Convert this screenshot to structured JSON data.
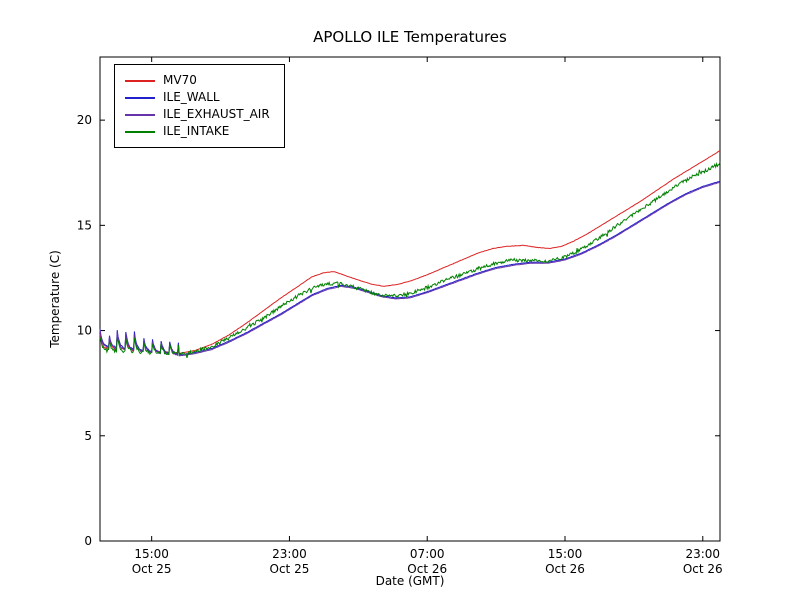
{
  "chart_data": {
    "type": "line",
    "title": "APOLLO ILE Temperatures",
    "xlabel": "Date (GMT)",
    "ylabel": "Temperature (C)",
    "x_unit_note": "hours since Oct 25 12:00 GMT",
    "xlim": [
      0,
      36
    ],
    "ylim": [
      0,
      23
    ],
    "yticks": [
      0,
      5,
      10,
      15,
      20
    ],
    "xticks": [
      {
        "t": 3,
        "time": "15:00",
        "date": "Oct 25"
      },
      {
        "t": 11,
        "time": "23:00",
        "date": "Oct 25"
      },
      {
        "t": 19,
        "time": "07:00",
        "date": "Oct 26"
      },
      {
        "t": 27,
        "time": "15:00",
        "date": "Oct 26"
      },
      {
        "t": 35,
        "time": "23:00",
        "date": "Oct 26"
      }
    ],
    "grid": false,
    "legend_position": "upper left",
    "frame_color": "#000000",
    "background": "#ffffff",
    "spike_region": {
      "t_end": 4.55,
      "period": 0.5,
      "note": "sawtooth oscillations on all series at start"
    },
    "series": [
      {
        "name": "MV70",
        "color": "#dd2222",
        "spike_amp": 0.7,
        "noise": 0.008,
        "points": [
          [
            0,
            9.15
          ],
          [
            4.5,
            8.9
          ],
          [
            5.5,
            9.05
          ],
          [
            6.5,
            9.35
          ],
          [
            7.5,
            9.8
          ],
          [
            8.5,
            10.35
          ],
          [
            9.5,
            10.95
          ],
          [
            10.5,
            11.55
          ],
          [
            11.5,
            12.1
          ],
          [
            12.3,
            12.55
          ],
          [
            13,
            12.75
          ],
          [
            13.6,
            12.8
          ],
          [
            14.3,
            12.6
          ],
          [
            15,
            12.4
          ],
          [
            15.8,
            12.2
          ],
          [
            16.5,
            12.1
          ],
          [
            17.3,
            12.2
          ],
          [
            18,
            12.35
          ],
          [
            19,
            12.65
          ],
          [
            20,
            13.0
          ],
          [
            21,
            13.35
          ],
          [
            22,
            13.7
          ],
          [
            22.8,
            13.9
          ],
          [
            23.6,
            14.0
          ],
          [
            24.6,
            14.05
          ],
          [
            25.4,
            13.95
          ],
          [
            26.1,
            13.9
          ],
          [
            26.8,
            14.0
          ],
          [
            27.5,
            14.25
          ],
          [
            28.3,
            14.6
          ],
          [
            29.3,
            15.1
          ],
          [
            30.3,
            15.6
          ],
          [
            31.3,
            16.1
          ],
          [
            32.3,
            16.65
          ],
          [
            33.3,
            17.2
          ],
          [
            34.3,
            17.7
          ],
          [
            35.2,
            18.15
          ],
          [
            36,
            18.55
          ]
        ]
      },
      {
        "name": "ILE_WALL",
        "color": "#2222cc",
        "spike_amp": 0.85,
        "noise": 0.008,
        "points": [
          [
            0,
            9.25
          ],
          [
            4.6,
            8.85
          ],
          [
            5.5,
            8.95
          ],
          [
            6.5,
            9.15
          ],
          [
            7.5,
            9.5
          ],
          [
            8.5,
            9.9
          ],
          [
            9.5,
            10.35
          ],
          [
            10.5,
            10.8
          ],
          [
            11.5,
            11.3
          ],
          [
            12.3,
            11.7
          ],
          [
            13.2,
            12.0
          ],
          [
            14,
            12.15
          ],
          [
            14.8,
            12.05
          ],
          [
            15.6,
            11.85
          ],
          [
            16.4,
            11.65
          ],
          [
            17.2,
            11.55
          ],
          [
            18,
            11.6
          ],
          [
            19,
            11.85
          ],
          [
            20,
            12.15
          ],
          [
            21,
            12.45
          ],
          [
            22,
            12.75
          ],
          [
            23,
            13.0
          ],
          [
            24,
            13.15
          ],
          [
            25,
            13.25
          ],
          [
            26,
            13.25
          ],
          [
            27,
            13.4
          ],
          [
            28,
            13.7
          ],
          [
            29,
            14.1
          ],
          [
            30,
            14.55
          ],
          [
            31,
            15.05
          ],
          [
            32,
            15.55
          ],
          [
            33,
            16.05
          ],
          [
            34,
            16.5
          ],
          [
            35,
            16.85
          ],
          [
            36,
            17.1
          ]
        ]
      },
      {
        "name": "ILE_EXHAUST_AIR",
        "color": "#6633aa",
        "spike_amp": 0.8,
        "noise": 0.008,
        "points": [
          [
            0,
            9.2
          ],
          [
            4.6,
            8.8
          ],
          [
            5.5,
            8.9
          ],
          [
            6.5,
            9.1
          ],
          [
            7.5,
            9.45
          ],
          [
            8.5,
            9.85
          ],
          [
            9.5,
            10.3
          ],
          [
            10.5,
            10.75
          ],
          [
            11.5,
            11.25
          ],
          [
            12.3,
            11.65
          ],
          [
            13.2,
            11.95
          ],
          [
            14,
            12.1
          ],
          [
            14.8,
            12.0
          ],
          [
            15.6,
            11.8
          ],
          [
            16.4,
            11.6
          ],
          [
            17.2,
            11.5
          ],
          [
            18,
            11.55
          ],
          [
            19,
            11.8
          ],
          [
            20,
            12.1
          ],
          [
            21,
            12.4
          ],
          [
            22,
            12.7
          ],
          [
            23,
            12.95
          ],
          [
            24,
            13.1
          ],
          [
            25,
            13.2
          ],
          [
            26,
            13.2
          ],
          [
            27,
            13.35
          ],
          [
            28,
            13.65
          ],
          [
            29,
            14.05
          ],
          [
            30,
            14.5
          ],
          [
            31,
            15.0
          ],
          [
            32,
            15.5
          ],
          [
            33,
            16.0
          ],
          [
            34,
            16.45
          ],
          [
            35,
            16.8
          ],
          [
            36,
            17.05
          ]
        ]
      },
      {
        "name": "ILE_INTAKE",
        "color": "#008000",
        "spike_amp": 0.65,
        "noise": 0.08,
        "points": [
          [
            0,
            9.05
          ],
          [
            4.6,
            8.85
          ],
          [
            5.5,
            9.0
          ],
          [
            6.5,
            9.25
          ],
          [
            7.5,
            9.65
          ],
          [
            8.5,
            10.1
          ],
          [
            9.5,
            10.6
          ],
          [
            10.5,
            11.15
          ],
          [
            11.5,
            11.65
          ],
          [
            12.3,
            12.0
          ],
          [
            13.1,
            12.2
          ],
          [
            13.8,
            12.25
          ],
          [
            14.6,
            12.1
          ],
          [
            15.4,
            11.9
          ],
          [
            16.1,
            11.7
          ],
          [
            16.9,
            11.62
          ],
          [
            17.6,
            11.7
          ],
          [
            18.3,
            11.85
          ],
          [
            19.2,
            12.1
          ],
          [
            20.2,
            12.45
          ],
          [
            21.2,
            12.7
          ],
          [
            22.2,
            13.0
          ],
          [
            23.2,
            13.25
          ],
          [
            24,
            13.35
          ],
          [
            25,
            13.32
          ],
          [
            26,
            13.3
          ],
          [
            26.8,
            13.45
          ],
          [
            27.6,
            13.7
          ],
          [
            28.5,
            14.15
          ],
          [
            29.5,
            14.7
          ],
          [
            30.5,
            15.25
          ],
          [
            31.5,
            15.8
          ],
          [
            32.5,
            16.35
          ],
          [
            33.5,
            16.9
          ],
          [
            34.5,
            17.35
          ],
          [
            35.3,
            17.65
          ],
          [
            36,
            17.95
          ]
        ]
      }
    ]
  }
}
